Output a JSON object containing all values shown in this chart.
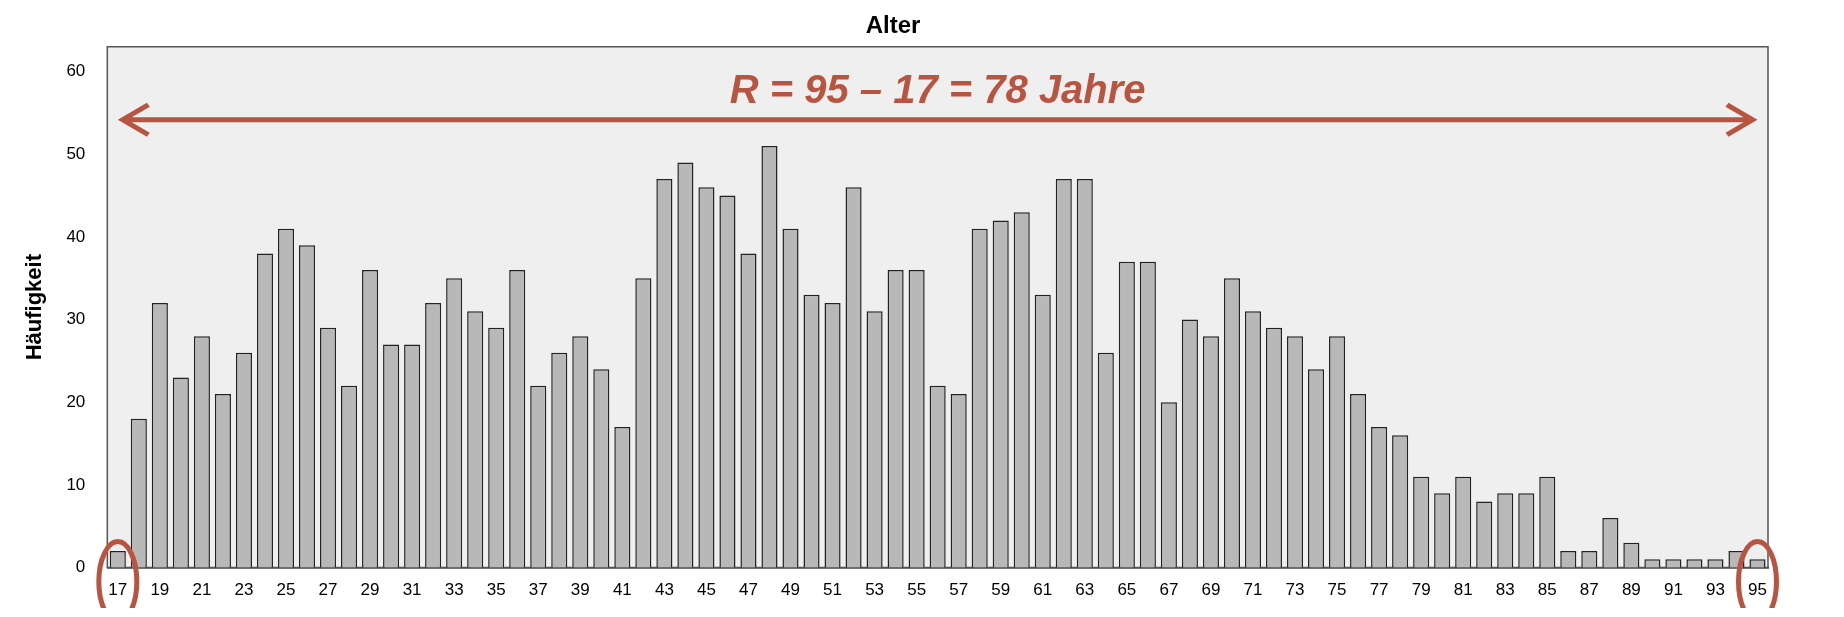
{
  "chart_data": {
    "type": "bar",
    "title": "Alter",
    "ylabel": "Häufigkeit",
    "categories": [
      "17",
      null,
      "19",
      null,
      "21",
      null,
      "23",
      null,
      "25",
      null,
      "27",
      null,
      "29",
      null,
      "31",
      null,
      "33",
      null,
      "35",
      null,
      "37",
      null,
      "39",
      null,
      "41",
      null,
      "43",
      null,
      "45",
      null,
      "47",
      null,
      "49",
      null,
      "51",
      null,
      "53",
      null,
      "55",
      null,
      "57",
      null,
      "59",
      null,
      "61",
      null,
      "63",
      null,
      "65",
      null,
      "67",
      null,
      "69",
      null,
      "71",
      null,
      "73",
      null,
      "75",
      null,
      "77",
      null,
      "79",
      null,
      "81",
      null,
      "83",
      null,
      "85",
      null,
      "87",
      null,
      "89",
      null,
      "91",
      null,
      "93",
      null,
      "95"
    ],
    "values": [
      2,
      18,
      32,
      23,
      28,
      21,
      26,
      38,
      41,
      39,
      29,
      22,
      36,
      27,
      27,
      32,
      35,
      31,
      29,
      36,
      22,
      26,
      28,
      24,
      17,
      35,
      47,
      49,
      46,
      45,
      38,
      51,
      41,
      33,
      32,
      46,
      31,
      36,
      36,
      22,
      21,
      41,
      42,
      43,
      33,
      47,
      47,
      26,
      37,
      37,
      20,
      30,
      28,
      35,
      31,
      29,
      28,
      24,
      28,
      21,
      17,
      16,
      11,
      9,
      11,
      8,
      9,
      9,
      11,
      2,
      2,
      6,
      3,
      1,
      1,
      1,
      1,
      2,
      1
    ],
    "color": "#b8b8b8",
    "ylim": [
      0,
      63
    ],
    "yticks": [
      0,
      10,
      20,
      30,
      40,
      50,
      60
    ],
    "grid": false,
    "legend": false,
    "annotations": [
      "R = 95 – 17 = 78 Jahre"
    ]
  }
}
